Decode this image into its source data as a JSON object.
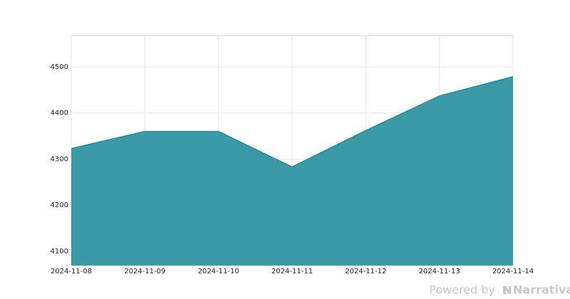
{
  "chart_data": {
    "type": "area",
    "categories": [
      "2024-11-08",
      "2024-11-09",
      "2024-11-10",
      "2024-11-11",
      "2024-11-12",
      "2024-11-13",
      "2024-11-14"
    ],
    "values": [
      4323,
      4360,
      4360,
      4283,
      4362,
      4437,
      4479
    ],
    "color": "#3a9ba7",
    "line_color": "#2b8a94",
    "ylim": [
      4069,
      4568
    ],
    "yticks": [
      4100,
      4200,
      4300,
      4400,
      4500
    ],
    "grid": true
  },
  "footer": {
    "prefix": "Powered by",
    "brand": "Narrativa"
  }
}
